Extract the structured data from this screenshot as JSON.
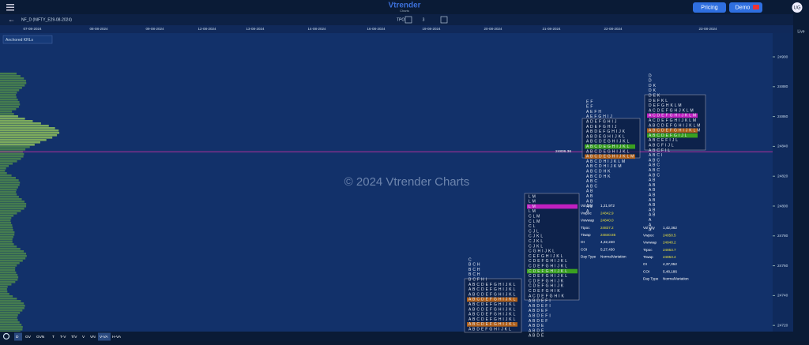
{
  "header": {
    "logo": "Vtrender",
    "logo_sub": "Charts",
    "pricing": "Pricing",
    "demo": "Demo",
    "user": "UG",
    "side_live": "Live"
  },
  "toolbar": {
    "symbol": "NF_D (NIFTY_E29-08-2024)",
    "tpo_label": "TPO",
    "tpo_value": "3",
    "anchored": "Anchored KRLs"
  },
  "dates": [
    "07-08-2024",
    "08-08-2024",
    "09-08-2024",
    "12-08-2024",
    "13-08-2024",
    "14-08-2024",
    "16-08-2024",
    "19-08-2024",
    "20-08-2024",
    "21-08-2024",
    "22-08-2024",
    "23-08-2024"
  ],
  "prices": [
    24900,
    24880,
    24860,
    24840,
    24820,
    24800,
    24780,
    24760,
    24740,
    24720
  ],
  "level": {
    "value": 24836.36,
    "label": "24836.36"
  },
  "watermark": "© 2024 Vtrender Charts",
  "profiles": [
    {
      "rows": [
        "C",
        "B C H",
        "B C H",
        "B C H",
        "B C F H I",
        "A B C D E F G H I J K L",
        "A B C D E F G H I J K L",
        "A B C D E F G H I J K L",
        "A B C D E F G H I J K L",
        "A B C D E F G H I J K L",
        "A B C D E F G H I J K L",
        "A B C D E F G H I J K L",
        "A B C D E F G H I J K L",
        "A B C D E F G H I J K L",
        "A B D E F G H I J K L"
      ]
    },
    {
      "rows": [
        "L M",
        "L M",
        "L M",
        "L M",
        "C L M",
        "C L M",
        "C L",
        "C J L",
        "C J K L",
        "C J K L",
        "C J K L",
        "C G H I J K L",
        "C E F G H I J K L",
        "C D E F G H I J K L",
        "C D E F G H I J K L",
        "C D E F G H I J K L",
        "C D E F G H I J K L",
        "C D E F G H I J K",
        "C D E F G H I J K",
        "C D E F G H I K",
        "A C D E F G H I K",
        "A B D E F I",
        "A B D E F I",
        "A B D E F",
        "A B D E F I",
        "A B D E F",
        "A B D E",
        "A B D E",
        "A B D E"
      ]
    },
    {
      "rows": [
        "E F",
        "E F",
        "A E F H",
        "A E F G H I J",
        "A D E F G H I J",
        "A D E F G H I J",
        "A B D E F G H I J K",
        "A B D E G H I J K L",
        "A B C D E G H I J K L",
        "A B C D E G H I J K L",
        "A B C D E G H I J K L",
        "A B C D E G H I J K L M",
        "A B C D H I J K L M",
        "A B C D H I J K M",
        "A B C D H K",
        "A B C D H K",
        "A B C",
        "A B C",
        "A B",
        "A B",
        "A B",
        "A B",
        "A"
      ]
    },
    {
      "rows": [
        "D",
        "D",
        "D K",
        "D K",
        "D E K",
        "D E F K L",
        "D E F G H K L M",
        "A C D E F G H J K L M",
        "A C D E F G H I J K L M",
        "A C D E F G H I J K L M",
        "A B C D E F G H I J K L M",
        "A B C D E F G H I J K L M",
        "A B C D E F G I J L",
        "A B C E F I J L",
        "A B C F I J L",
        "A B C F I L",
        "A B C I",
        "A B C",
        "A B C",
        "A B C",
        "A B C",
        "A B",
        "A B",
        "A B",
        "A B",
        "A B",
        "A B",
        "A B",
        "A B",
        "A",
        "A",
        "A"
      ]
    }
  ],
  "stats": [
    {
      "items": [
        {
          "label": "Vol Qty",
          "value": "1,21,972"
        },
        {
          "label": "Vwpoc",
          "value": "24842.9"
        },
        {
          "label": "Vwvwap",
          "value": "24840.0"
        },
        {
          "label": "Ttpoc",
          "value": "24837.2"
        },
        {
          "label": "Ttwap",
          "value": "24840.85"
        },
        {
          "label": "OI",
          "value": "4,22,240"
        },
        {
          "label": "COI",
          "value": "5,27,430"
        },
        {
          "label": "Day Type",
          "value": "NormalVariation"
        }
      ]
    },
    {
      "items": [
        {
          "label": "Vol Qty",
          "value": "1,42,362"
        },
        {
          "label": "Vwpoc",
          "value": "24858.5"
        },
        {
          "label": "Vwvwap",
          "value": "24848.2"
        },
        {
          "label": "Ttpoc",
          "value": "24853.7"
        },
        {
          "label": "Ttwap",
          "value": "24853.4"
        },
        {
          "label": "OI",
          "value": "4,37,052"
        },
        {
          "label": "COI",
          "value": "5,48,186"
        },
        {
          "label": "Day Type",
          "value": "NormalVariation"
        }
      ]
    }
  ],
  "bottom": [
    "D",
    "GV",
    "GVN",
    "T",
    "T-V",
    "T/V",
    "V",
    "VN",
    "V-VA",
    "H-VA"
  ]
}
